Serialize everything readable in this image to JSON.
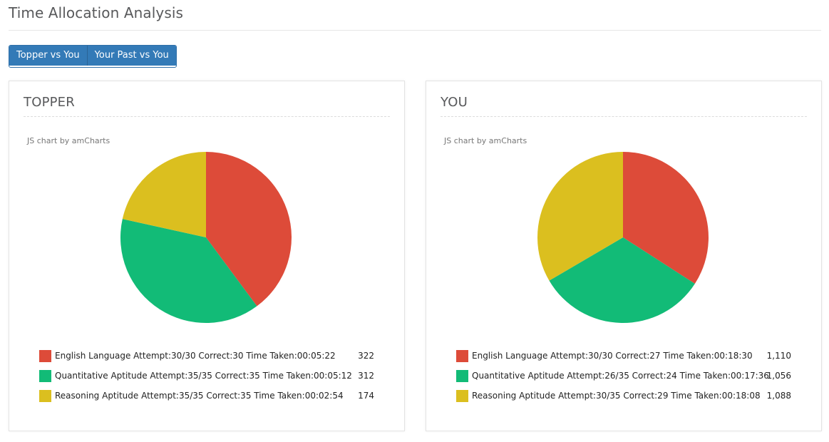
{
  "page": {
    "title": "Time Allocation Analysis"
  },
  "tabs": [
    {
      "label": "Topper vs You"
    },
    {
      "label": "Your Past vs You"
    }
  ],
  "panels": [
    {
      "title": "TOPPER",
      "credit": "JS chart by amCharts",
      "chart_data": {
        "type": "pie",
        "title": "TOPPER",
        "slices": [
          {
            "label": "English Language Attempt:30/30 Correct:30 Time Taken:00:05:22",
            "value": 322,
            "value_label": "322",
            "color": "#dd4b39"
          },
          {
            "label": "Quantitative Aptitude Attempt:35/35 Correct:35 Time Taken:00:05:12",
            "value": 312,
            "value_label": "312",
            "color": "#12bb77"
          },
          {
            "label": "Reasoning Aptitude Attempt:35/35 Correct:35 Time Taken:00:02:54",
            "value": 174,
            "value_label": "174",
            "color": "#dbbf1f"
          }
        ],
        "legend": "bottom"
      }
    },
    {
      "title": "YOU",
      "credit": "JS chart by amCharts",
      "chart_data": {
        "type": "pie",
        "title": "YOU",
        "slices": [
          {
            "label": "English Language Attempt:30/30 Correct:27 Time Taken:00:18:30",
            "value": 1110,
            "value_label": "1,110",
            "color": "#dd4b39"
          },
          {
            "label": "Quantitative Aptitude Attempt:26/35 Correct:24 Time Taken:00:17:36",
            "value": 1056,
            "value_label": "1,056",
            "color": "#12bb77"
          },
          {
            "label": "Reasoning Aptitude Attempt:30/35 Correct:29 Time Taken:00:18:08",
            "value": 1088,
            "value_label": "1,088",
            "color": "#dbbf1f"
          }
        ],
        "legend": "bottom"
      }
    }
  ]
}
